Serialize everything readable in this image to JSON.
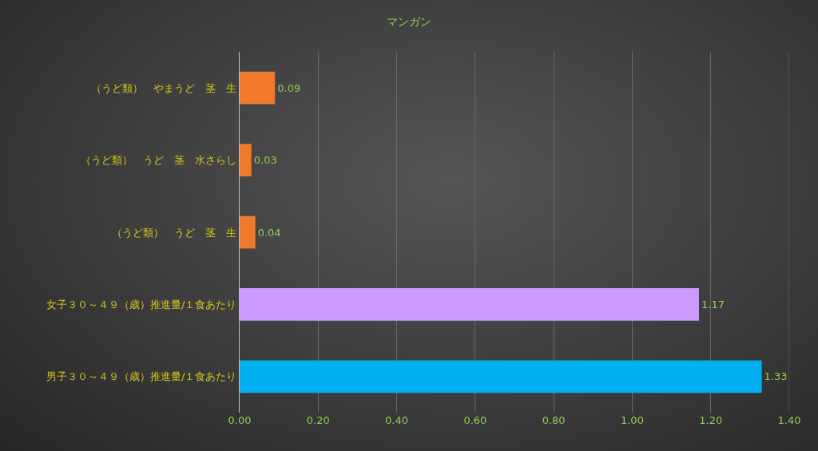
{
  "chart_data": {
    "type": "bar",
    "orientation": "horizontal",
    "title": "マンガン",
    "categories": [
      "（うど類）　やまうど　茎　生",
      "（うど類）　うど　茎　水さらし",
      "（うど類）　うど　茎　生",
      "女子３０～４９（歳）推進量/１食あたり",
      "男子３０～４９（歳）推進量/１食あたり"
    ],
    "values": [
      0.09,
      0.03,
      0.04,
      1.17,
      1.33
    ],
    "colors": [
      "#f07a2a",
      "#f07a2a",
      "#f07a2a",
      "#cc99ff",
      "#00b0f0"
    ],
    "xlim": [
      0,
      1.4
    ],
    "xticks": [
      "0.00",
      "0.20",
      "0.40",
      "0.60",
      "0.80",
      "1.00",
      "1.20",
      "1.40"
    ],
    "grid": "x",
    "data_labels": true,
    "legend": false
  }
}
